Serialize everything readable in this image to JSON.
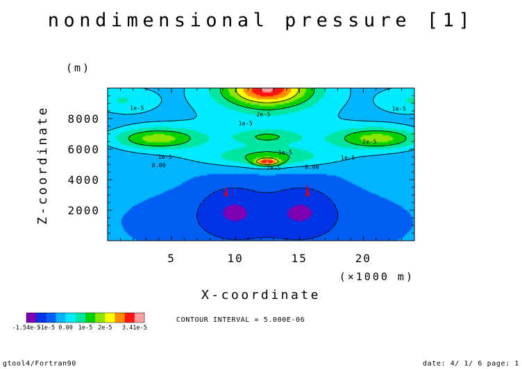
{
  "chart_data": {
    "type": "contour",
    "title": "nondimensional pressure [1]",
    "xlabel": "X-coordinate",
    "ylabel": "Z-coordinate",
    "xunit": "(×1000 m)",
    "yunit": "(m)",
    "xlim": [
      0,
      24
    ],
    "ylim": [
      0,
      10000
    ],
    "x_ticks": [
      5,
      10,
      15,
      20
    ],
    "x_tick_labels": [
      "5",
      "10",
      "15",
      "20"
    ],
    "y_ticks": [
      2000,
      4000,
      6000,
      8000
    ],
    "y_tick_labels": [
      "2000",
      "4000",
      "6000",
      "8000"
    ],
    "contour_interval_text": "CONTOUR INTERVAL = 5.000E-06",
    "levels": [
      -1.54e-05,
      -1.5e-05,
      -1e-05,
      -5e-06,
      0,
      5e-06,
      1e-05,
      1.5e-05,
      2e-05,
      2.5e-05,
      3e-05,
      3.41e-05
    ],
    "colors": [
      "#7d00b2",
      "#0032e6",
      "#005ff2",
      "#00b4ff",
      "#00ebff",
      "#00e6a0",
      "#00d200",
      "#8ce600",
      "#ffff00",
      "#ff8c00",
      "#ff1414",
      "#ffa0a0"
    ],
    "contour_labels": [
      {
        "text": "1e-5",
        "x": 2.3,
        "z": 8700
      },
      {
        "text": "1e-5",
        "x": 10.8,
        "z": 7700
      },
      {
        "text": "2e-5",
        "x": 12.2,
        "z": 8300
      },
      {
        "text": "1e-5",
        "x": 22.8,
        "z": 8650
      },
      {
        "text": "2e-5",
        "x": 20.5,
        "z": 6500
      },
      {
        "text": "1e-5",
        "x": 4.5,
        "z": 5500
      },
      {
        "text": "1e-5",
        "x": 13.9,
        "z": 5800
      },
      {
        "text": "1e-5",
        "x": 18.8,
        "z": 5450
      },
      {
        "text": "2e-5",
        "x": 13.0,
        "z": 4800
      },
      {
        "text": "0.00",
        "x": 4.0,
        "z": 4950
      },
      {
        "text": "0.00",
        "x": 16.0,
        "z": 4850
      }
    ],
    "colorbar_labels": [
      "-1.54e-5",
      "-1e-5",
      "0.00",
      "1e-5",
      "2e-5",
      "3.41e-5"
    ],
    "colorbar_label_levels": [
      -1.54e-05,
      -1e-05,
      0,
      1e-05,
      2e-05,
      3.41e-05
    ]
  },
  "footer": {
    "left": "gtool4/Fortran90",
    "right": "date: 4/ 1/ 6 page: 1"
  }
}
